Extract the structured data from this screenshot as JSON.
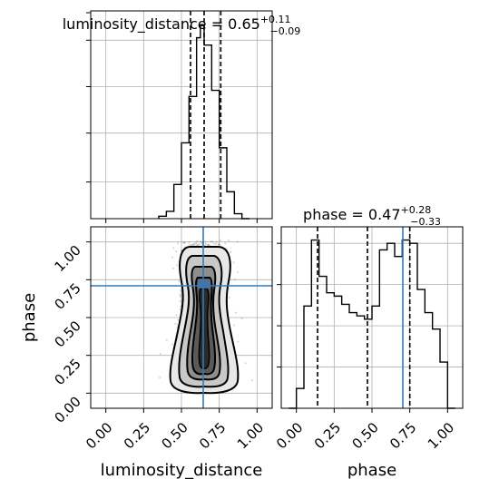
{
  "chart_data": {
    "type": "corner",
    "parameters": [
      "luminosity_distance",
      "phase"
    ],
    "truths": {
      "luminosity_distance": 0.64,
      "phase": 0.71
    },
    "panels": [
      {
        "type": "histogram",
        "parameter": "luminosity_distance",
        "title": {
          "prefix": "luminosity_distance = 0.65",
          "plus": "+0.11",
          "minus": "−0.09"
        },
        "median": 0.65,
        "quantiles": [
          0.56,
          0.65,
          0.76
        ],
        "xlim": [
          -0.1,
          1.1
        ],
        "bin_edges": [
          0.35,
          0.4,
          0.45,
          0.5,
          0.55,
          0.6,
          0.625,
          0.65,
          0.7,
          0.75,
          0.8,
          0.85,
          0.9,
          0.95
        ],
        "counts": [
          2,
          6,
          28,
          62,
          100,
          148,
          158,
          142,
          105,
          58,
          22,
          4,
          0
        ]
      },
      {
        "type": "hist2d",
        "x": "luminosity_distance",
        "y": "phase",
        "xlim": [
          -0.1,
          1.1
        ],
        "ylim": [
          -0.1,
          1.1
        ],
        "xticks": [
          "0.00",
          "0.25",
          "0.50",
          "0.75",
          "1.00"
        ],
        "yticks": [
          "0.00",
          "0.25",
          "0.50",
          "0.75",
          "1.00"
        ],
        "xlabel": "luminosity_distance",
        "ylabel": "phase"
      },
      {
        "type": "histogram",
        "parameter": "phase",
        "title": {
          "prefix": "phase = 0.47",
          "plus": "+0.28",
          "minus": "−0.33"
        },
        "median": 0.47,
        "quantiles": [
          0.14,
          0.47,
          0.75
        ],
        "xlim": [
          -0.1,
          1.1
        ],
        "xticks": [
          "0.00",
          "0.25",
          "0.50",
          "0.75",
          "1.00"
        ],
        "xlabel": "phase",
        "bin_edges": [
          -0.05,
          0.0,
          0.05,
          0.1,
          0.15,
          0.2,
          0.25,
          0.3,
          0.35,
          0.4,
          0.45,
          0.5,
          0.55,
          0.6,
          0.65,
          0.7,
          0.75,
          0.8,
          0.85,
          0.9,
          0.95,
          1.0,
          1.05
        ],
        "counts": [
          0,
          12,
          62,
          102,
          80,
          70,
          68,
          63,
          58,
          56,
          54,
          62,
          96,
          100,
          92,
          102,
          100,
          72,
          58,
          48,
          28,
          0
        ]
      }
    ]
  }
}
